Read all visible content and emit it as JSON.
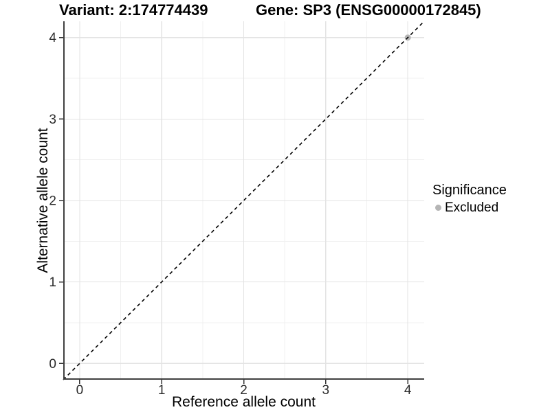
{
  "titles": {
    "variant": "Variant: 2:174774439",
    "gene": "Gene: SP3 (ENSG00000172845)"
  },
  "chart_data": {
    "type": "scatter",
    "xlabel": "Reference allele count",
    "ylabel": "Alternative allele count",
    "xlim": [
      -0.2,
      4.2
    ],
    "ylim": [
      -0.2,
      4.2
    ],
    "xticks": [
      0,
      1,
      2,
      3,
      4
    ],
    "yticks": [
      0,
      1,
      2,
      3,
      4
    ],
    "xminor": [
      0.5,
      1.5,
      2.5,
      3.5
    ],
    "yminor": [
      0.5,
      1.5,
      2.5,
      3.5
    ],
    "grid": true,
    "identity_line": {
      "slope": 1,
      "intercept": 0,
      "style": "dashed",
      "color": "#000000"
    },
    "series": [
      {
        "name": "Excluded",
        "color": "#b5b5b5",
        "points": [
          {
            "x": 4,
            "y": 4
          }
        ]
      }
    ],
    "legend": {
      "title": "Significance",
      "position": "right",
      "items": [
        {
          "label": "Excluded",
          "color": "#b5b5b5"
        }
      ]
    }
  },
  "colors": {
    "background": "#ffffff",
    "grid_major": "#e3e3e3",
    "grid_minor": "#f0f0f0",
    "axis_line": "#3f3f3f",
    "tick_mark": "#333333",
    "tick_label": "#2b2b2b",
    "point_excluded": "#b5b5b5"
  }
}
